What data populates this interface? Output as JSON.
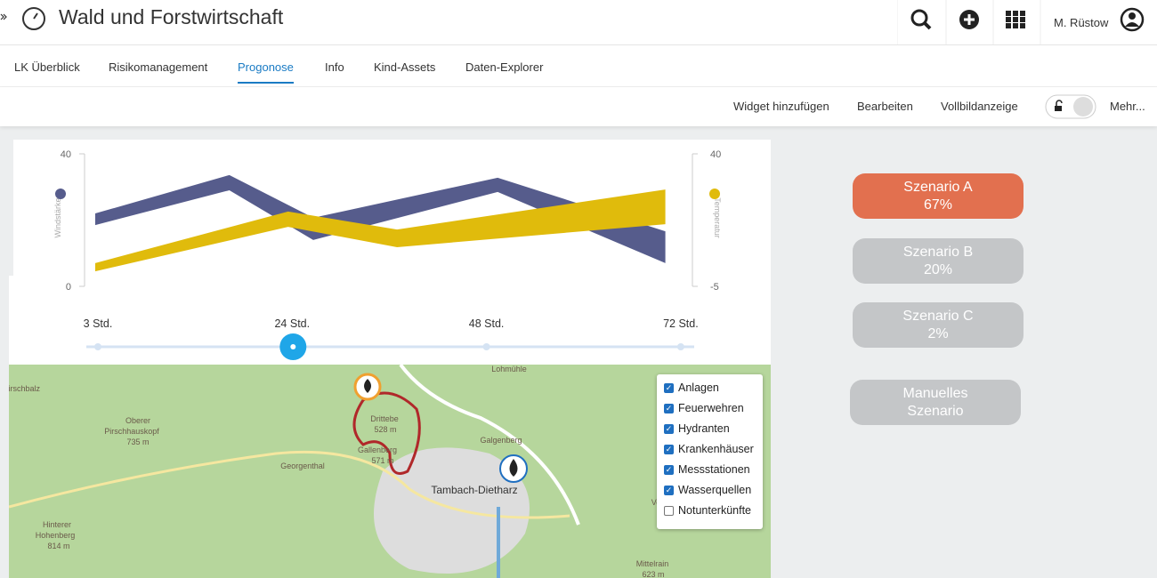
{
  "header": {
    "title": "Wald und Forstwirtschaft",
    "user": "M. Rüstow"
  },
  "tabs": [
    {
      "label": "LK Überblick",
      "selected": false
    },
    {
      "label": "Risikomanagement",
      "selected": false
    },
    {
      "label": "Progonose",
      "selected": true
    },
    {
      "label": "Info",
      "selected": false
    },
    {
      "label": "Kind-Assets",
      "selected": false
    },
    {
      "label": "Daten-Explorer",
      "selected": false
    }
  ],
  "toolbar": [
    "Widget hinzufügen",
    "Bearbeiten",
    "Vollbildanzeige",
    "Mehr..."
  ],
  "chart": {
    "type": "band",
    "xlim": [
      3,
      72
    ],
    "ylabel": "Windstärke",
    "ylim": [
      0,
      40
    ],
    "yticks": [
      0,
      40
    ],
    "y2label": "Temperatur",
    "y2lim": [
      -5,
      40
    ],
    "y2ticks": [
      -5,
      40
    ],
    "series": [
      {
        "color": "#565c8c",
        "x": [
          3,
          19,
          29,
          51,
          71
        ],
        "upper": [
          22,
          33.6,
          20.7,
          32.8,
          16.6
        ],
        "lower": [
          18.5,
          29,
          14,
          28.5,
          7
        ]
      },
      {
        "color": "#e0bb0c",
        "axis": "y2",
        "x": [
          3,
          26,
          39,
          71
        ],
        "upper": [
          2.9,
          20.4,
          14.3,
          27.9
        ],
        "lower": [
          0.1,
          15.2,
          8.3,
          16.1
        ]
      }
    ]
  },
  "slider": {
    "stops": [
      "3 Std.",
      "24 Std.",
      "48 Std.",
      "72 Std."
    ],
    "selected": 1
  },
  "map": {
    "places": [
      {
        "label": "Lohmühle"
      },
      {
        "label": "Hirschbalz"
      },
      {
        "label": "Oberer"
      },
      {
        "label": "Pirschhauskopf"
      },
      {
        "label": "735 m"
      },
      {
        "label": "Drittebe"
      },
      {
        "label": "528 m"
      },
      {
        "label": "Gallenberg"
      },
      {
        "label": "571 m"
      },
      {
        "label": "Georgenthal"
      },
      {
        "label": "Galgenberg"
      },
      {
        "label": "Tambach-Dietharz"
      },
      {
        "label": "Hinterer"
      },
      {
        "label": "Hohenberg"
      },
      {
        "label": "814 m"
      },
      {
        "label": "Mittelrain"
      },
      {
        "label": "623 m"
      },
      {
        "label": "Voge"
      }
    ],
    "layers": [
      {
        "label": "Anlagen",
        "checked": true
      },
      {
        "label": "Feuerwehren",
        "checked": true
      },
      {
        "label": "Hydranten",
        "checked": true
      },
      {
        "label": "Krankenhäuser",
        "checked": true
      },
      {
        "label": "Messstationen",
        "checked": true
      },
      {
        "label": "Wasserquellen",
        "checked": true
      },
      {
        "label": "Notunterkünfte",
        "checked": false
      }
    ]
  },
  "scenarios": [
    {
      "name": "Szenario A",
      "percent": "67%",
      "active": true
    },
    {
      "name": "Szenario B",
      "percent": "20%",
      "active": false
    },
    {
      "name": "Szenario C",
      "percent": "2%",
      "active": false
    },
    {
      "name": "Manuelles",
      "percent": "Szenario",
      "active": false
    }
  ]
}
